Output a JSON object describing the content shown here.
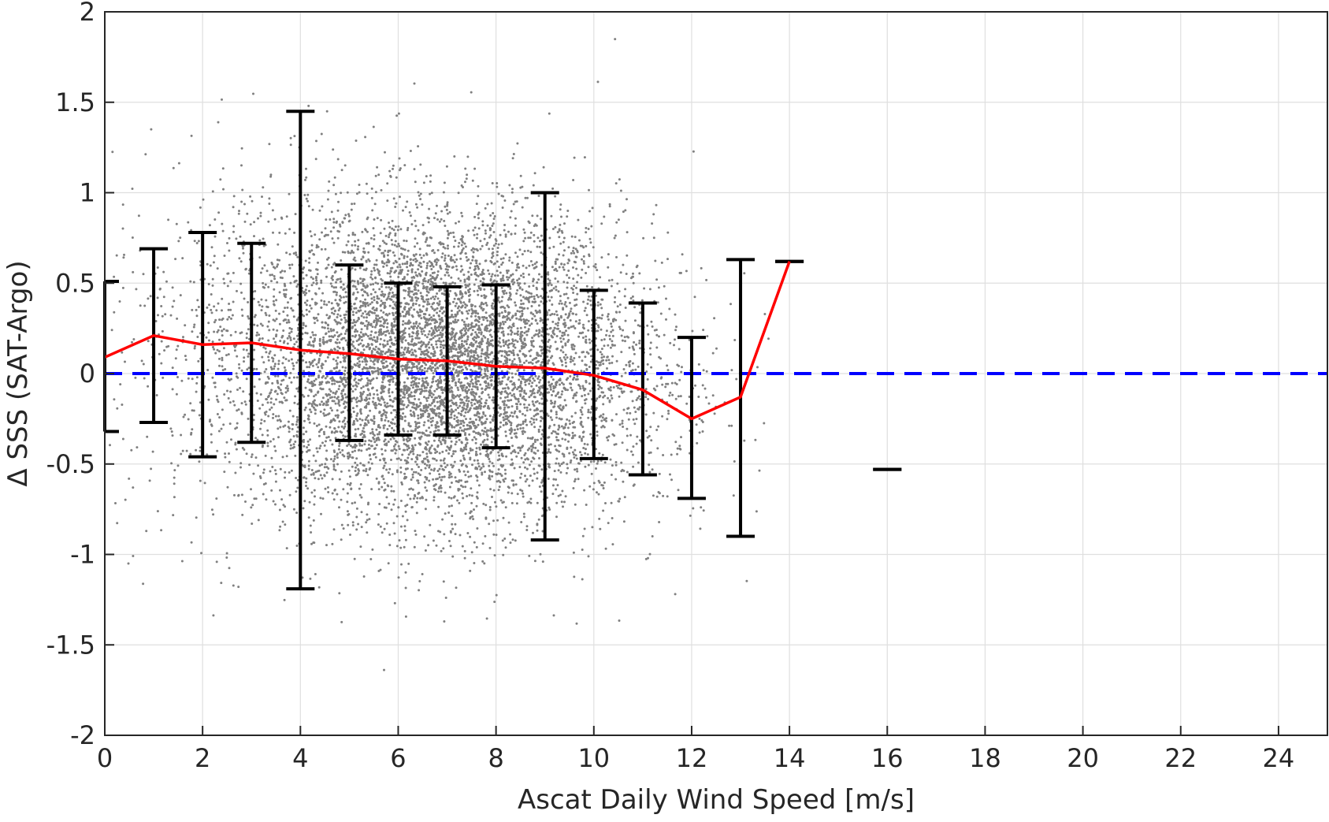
{
  "chart_data": {
    "type": "scatter",
    "xlabel": "Ascat Daily Wind Speed [m/s]",
    "ylabel": "Δ SSS (SAT-Argo)",
    "xlim": [
      0,
      25
    ],
    "ylim": [
      -2,
      2
    ],
    "xticks": [
      0,
      2,
      4,
      6,
      8,
      10,
      12,
      14,
      16,
      18,
      20,
      22,
      24
    ],
    "yticks": [
      -2,
      -1.5,
      -1,
      -0.5,
      0,
      0.5,
      1,
      1.5,
      2
    ],
    "xtick_labels": [
      "0",
      "2",
      "4",
      "6",
      "8",
      "10",
      "12",
      "14",
      "16",
      "18",
      "20",
      "22",
      "24"
    ],
    "ytick_labels": [
      "-2",
      "-1.5",
      "-1",
      "-0.5",
      "0",
      "0.5",
      "1",
      "1.5",
      "2"
    ],
    "grid": true,
    "scatter_color": "#808080",
    "mean_line_color": "#ff0000",
    "errorbar_color": "#000000",
    "reference_line": {
      "y": 0,
      "color": "#0000ff",
      "style": "dashed"
    },
    "errorbars": [
      {
        "x": 0,
        "low": -0.32,
        "high": 0.51
      },
      {
        "x": 1,
        "low": -0.27,
        "high": 0.69
      },
      {
        "x": 2,
        "low": -0.46,
        "high": 0.78
      },
      {
        "x": 3,
        "low": -0.38,
        "high": 0.72
      },
      {
        "x": 4,
        "low": -1.19,
        "high": 1.45
      },
      {
        "x": 5,
        "low": -0.37,
        "high": 0.6
      },
      {
        "x": 6,
        "low": -0.34,
        "high": 0.5
      },
      {
        "x": 7,
        "low": -0.34,
        "high": 0.48
      },
      {
        "x": 8,
        "low": -0.41,
        "high": 0.49
      },
      {
        "x": 9,
        "low": -0.92,
        "high": 1.0
      },
      {
        "x": 10,
        "low": -0.47,
        "high": 0.46
      },
      {
        "x": 11,
        "low": -0.56,
        "high": 0.39
      },
      {
        "x": 12,
        "low": -0.69,
        "high": 0.2
      },
      {
        "x": 13,
        "low": -0.9,
        "high": 0.63
      },
      {
        "x": 14,
        "low": 0.62,
        "high": 0.62
      },
      {
        "x": 16,
        "low": -0.53,
        "high": -0.53
      }
    ],
    "mean_line": {
      "x": [
        0,
        1,
        2,
        3,
        4,
        5,
        6,
        7,
        8,
        9,
        10,
        11,
        12,
        13,
        14
      ],
      "y": [
        0.09,
        0.21,
        0.16,
        0.17,
        0.13,
        0.11,
        0.08,
        0.07,
        0.04,
        0.03,
        -0.01,
        -0.09,
        -0.25,
        -0.13,
        0.62
      ]
    },
    "scatter_clusters": [
      {
        "cx": 6.8,
        "cy": 0.05,
        "sx": 1.9,
        "sy": 0.42,
        "n": 6500,
        "xmin": 0.1,
        "xmax": 13.6
      },
      {
        "cx": 3.2,
        "cy": 0.15,
        "sx": 1.6,
        "sy": 0.55,
        "n": 700,
        "xmin": 0.1,
        "xmax": 9.0
      },
      {
        "cx": 9.5,
        "cy": 0.0,
        "sx": 1.6,
        "sy": 0.45,
        "n": 600,
        "xmin": 6.0,
        "xmax": 13.6
      }
    ]
  }
}
